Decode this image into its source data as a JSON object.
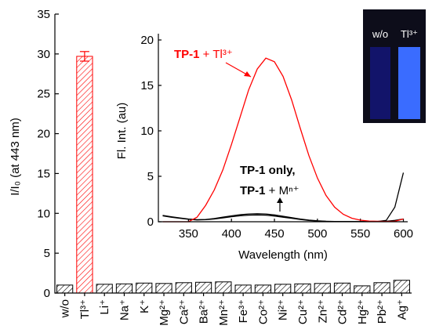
{
  "chart_data": [
    {
      "type": "bar",
      "ylabel": "I/I₀ (at 443 nm)",
      "categories": [
        "w/o",
        "Tl³⁺",
        "Li⁺",
        "Na⁺",
        "K⁺",
        "Mg²⁺",
        "Ca²⁺",
        "Ba²⁺",
        "Mn²⁺",
        "Fe³⁺",
        "Co²⁺",
        "Ni²⁺",
        "Cu²⁺",
        "Zn²⁺",
        "Cd²⁺",
        "Hg²⁺",
        "Pb²⁺",
        "Ag⁺"
      ],
      "values": [
        1.0,
        29.7,
        1.1,
        1.15,
        1.25,
        1.2,
        1.3,
        1.35,
        1.4,
        1.0,
        1.0,
        1.1,
        1.15,
        1.2,
        1.25,
        0.9,
        1.3,
        1.6
      ],
      "errors": [
        null,
        0.6,
        null,
        null,
        null,
        null,
        null,
        null,
        null,
        null,
        null,
        null,
        null,
        null,
        null,
        null,
        null,
        null
      ],
      "colors": [
        "#000000",
        "#ff0000",
        "#000000",
        "#000000",
        "#000000",
        "#000000",
        "#000000",
        "#000000",
        "#000000",
        "#000000",
        "#000000",
        "#000000",
        "#000000",
        "#000000",
        "#000000",
        "#000000",
        "#000000",
        "#000000"
      ],
      "ylim": [
        0,
        35
      ],
      "yticks": [
        0,
        5,
        10,
        15,
        20,
        25,
        30,
        35
      ],
      "photo_labels": [
        "w/o",
        "Tl³⁺"
      ]
    },
    {
      "type": "line",
      "xlabel": "Wavelength (nm)",
      "ylabel": "Fl. Int. (au)",
      "x": [
        320,
        330,
        340,
        350,
        360,
        370,
        380,
        390,
        400,
        410,
        420,
        430,
        440,
        450,
        460,
        470,
        480,
        490,
        500,
        510,
        520,
        530,
        540,
        550,
        560,
        570,
        580,
        590,
        600
      ],
      "series": [
        {
          "color": "#000000",
          "values": [
            0.7,
            0.55,
            0.42,
            0.3,
            0.22,
            0.25,
            0.35,
            0.5,
            0.65,
            0.78,
            0.85,
            0.88,
            0.85,
            0.75,
            0.6,
            0.45,
            0.3,
            0.18,
            0.1,
            0.05,
            0.03,
            0.02,
            0.02,
            0.02,
            0.02,
            0.03,
            0.15,
            1.6,
            5.4
          ]
        },
        {
          "color": "#000000",
          "values": [
            0.65,
            0.5,
            0.38,
            0.27,
            0.2,
            0.22,
            0.3,
            0.42,
            0.55,
            0.66,
            0.72,
            0.74,
            0.72,
            0.63,
            0.5,
            0.38,
            0.25,
            0.15,
            0.08,
            0.04,
            0.02,
            0.02,
            0.02,
            0.02,
            0.02,
            0.02,
            0.05,
            0.15,
            0.3
          ]
        },
        {
          "color": "#ff0000",
          "values": [
            0,
            0,
            0,
            0,
            0.5,
            1.8,
            3.5,
            5.7,
            8.5,
            11.5,
            14.5,
            16.8,
            18.0,
            17.6,
            16.0,
            13.4,
            10.3,
            7.3,
            4.8,
            2.9,
            1.6,
            0.82,
            0.39,
            0.17,
            0.08,
            0.05,
            0.03,
            0.05,
            0.3
          ]
        }
      ],
      "xlim": [
        315,
        605
      ],
      "xticks": [
        350,
        400,
        450,
        500,
        550,
        600
      ],
      "ylim": [
        0,
        20
      ],
      "yticks": [
        0,
        5,
        10,
        15,
        20
      ],
      "annotations": [
        {
          "color": "#ff0000",
          "parts": [
            {
              "text": "TP-1",
              "bold": true
            },
            {
              "text": " + Tl³⁺",
              "bold": false
            }
          ]
        },
        {
          "color": "#000000",
          "parts": [
            {
              "text": "TP-1",
              "bold": true
            },
            {
              "text": " only,",
              "bold": true
            }
          ]
        },
        {
          "color": "#000000",
          "parts": [
            {
              "text": "TP-1",
              "bold": true
            },
            {
              "text": " + Mⁿ⁺",
              "bold": false
            }
          ]
        }
      ]
    }
  ]
}
